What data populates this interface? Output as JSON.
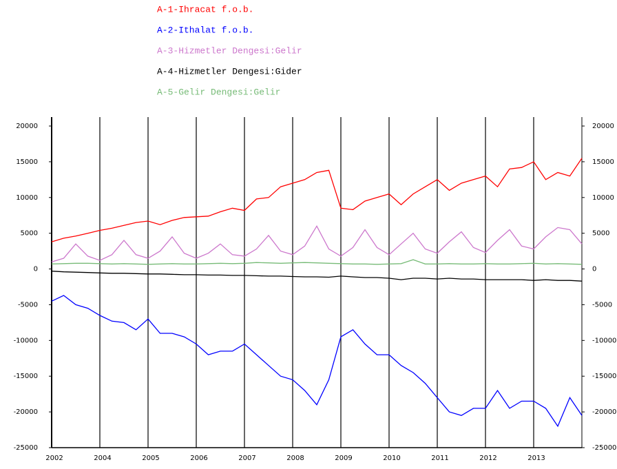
{
  "chart_data": {
    "type": "line",
    "x": [
      0,
      3,
      6,
      9,
      12,
      15,
      18,
      21,
      24,
      27,
      30,
      33,
      36,
      39,
      42,
      45,
      48,
      51,
      54,
      57,
      60,
      63,
      66,
      69,
      72,
      75,
      78,
      81,
      84,
      87,
      90,
      93,
      96,
      99,
      102,
      105,
      108,
      111,
      114,
      117,
      120,
      123,
      126,
      129,
      132
    ],
    "xlim": [
      0,
      132
    ],
    "xticks": [
      {
        "value": 0,
        "label": "2002"
      },
      {
        "value": 12,
        "label": "2004"
      },
      {
        "value": 24,
        "label": "2005"
      },
      {
        "value": 36,
        "label": "2006"
      },
      {
        "value": 48,
        "label": "2007"
      },
      {
        "value": 60,
        "label": "2008"
      },
      {
        "value": 72,
        "label": "2009"
      },
      {
        "value": 84,
        "label": "2010"
      },
      {
        "value": 96,
        "label": "2011"
      },
      {
        "value": 108,
        "label": "2012"
      },
      {
        "value": 120,
        "label": "2013"
      }
    ],
    "ylim": [
      -25000,
      20000
    ],
    "yticks": [
      -25000,
      -20000,
      -15000,
      -10000,
      -5000,
      0,
      5000,
      10000,
      15000,
      20000
    ],
    "grid": true,
    "series": [
      {
        "name": "A-1-Ihracat f.o.b.",
        "color": "#ff0000",
        "values": [
          3800,
          4300,
          4600,
          5000,
          5400,
          5700,
          6100,
          6500,
          6700,
          6200,
          6800,
          7200,
          7300,
          7400,
          8000,
          8500,
          8200,
          9800,
          10000,
          11500,
          12000,
          12500,
          13500,
          13800,
          8500,
          8300,
          9500,
          10000,
          10500,
          9000,
          10500,
          11500,
          12500,
          11000,
          12000,
          12500,
          13000,
          11500,
          14000,
          14200,
          15000,
          12500,
          13500,
          13000,
          15500
        ]
      },
      {
        "name": "A-2-Ithalat f.o.b.",
        "color": "#0000ff",
        "values": [
          -4500,
          -3700,
          -5000,
          -5500,
          -6500,
          -7300,
          -7500,
          -8500,
          -7000,
          -9000,
          -9000,
          -9500,
          -10500,
          -12000,
          -11500,
          -11500,
          -10500,
          -12000,
          -13500,
          -15000,
          -15500,
          -17000,
          -19000,
          -15500,
          -9500,
          -8500,
          -10500,
          -12000,
          -12000,
          -13500,
          -14500,
          -16000,
          -18000,
          -20000,
          -20500,
          -19500,
          -19500,
          -17000,
          -19500,
          -18500,
          -18500,
          -19500,
          -22000,
          -18000,
          -20500
        ]
      },
      {
        "name": "A-3-Hizmetler Dengesi:Gelir",
        "color": "#cc77cc",
        "values": [
          1000,
          1500,
          3500,
          1800,
          1200,
          2000,
          4000,
          2000,
          1500,
          2500,
          4500,
          2200,
          1500,
          2200,
          3500,
          2000,
          1800,
          2800,
          4700,
          2500,
          2000,
          3200,
          6000,
          2800,
          1800,
          3000,
          5500,
          3000,
          2000,
          3500,
          5000,
          2800,
          2200,
          3800,
          5200,
          3000,
          2300,
          4000,
          5500,
          3200,
          2800,
          4500,
          5800,
          5500,
          3500
        ]
      },
      {
        "name": "A-4-Hizmetler Dengesi:Gider",
        "color": "#000000",
        "values": [
          -300,
          -400,
          -450,
          -500,
          -550,
          -600,
          -600,
          -650,
          -700,
          -700,
          -750,
          -800,
          -800,
          -850,
          -850,
          -900,
          -900,
          -950,
          -1000,
          -1000,
          -1050,
          -1100,
          -1100,
          -1150,
          -1000,
          -1100,
          -1200,
          -1200,
          -1300,
          -1500,
          -1300,
          -1300,
          -1400,
          -1300,
          -1400,
          -1400,
          -1500,
          -1500,
          -1500,
          -1500,
          -1600,
          -1500,
          -1600,
          -1600,
          -1700
        ]
      },
      {
        "name": "A-5-Gelir Dengesi:Gelir",
        "color": "#77bb77",
        "values": [
          700,
          750,
          800,
          800,
          750,
          700,
          750,
          700,
          650,
          700,
          750,
          700,
          700,
          750,
          800,
          750,
          800,
          900,
          850,
          800,
          850,
          900,
          850,
          800,
          750,
          700,
          700,
          650,
          700,
          750,
          1300,
          700,
          700,
          750,
          700,
          700,
          750,
          700,
          700,
          750,
          800,
          700,
          750,
          700,
          650
        ]
      }
    ]
  }
}
